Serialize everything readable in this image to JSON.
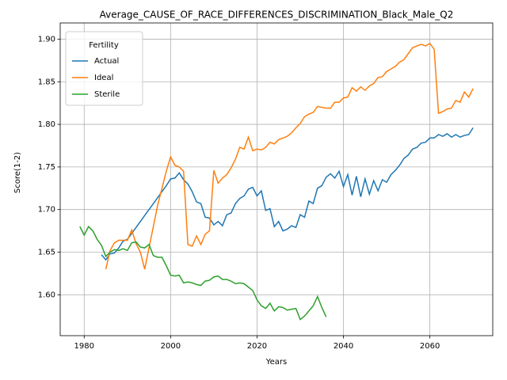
{
  "chart_data": {
    "type": "line",
    "title": "Average_CAUSE_OF_RACE_DIFFERENCES_DISCRIMINATION_Black_Male_Q2",
    "xlabel": "Years",
    "ylabel": "Score(1-2)",
    "legend_title": "Fertility",
    "legend_loc": "upper left",
    "grid": true,
    "xlim": [
      1974.45,
      2074.55
    ],
    "ylim": [
      1.552,
      1.919
    ],
    "xticks": [
      1980,
      2000,
      2020,
      2040,
      2060
    ],
    "yticks": [
      {
        "value": 1.6,
        "label": "1.60"
      },
      1.65,
      {
        "value": 1.7,
        "label": "1.70"
      },
      1.75,
      {
        "value": 1.8,
        "label": "1.80"
      },
      1.85,
      {
        "value": 1.9,
        "label": "1.90"
      }
    ],
    "x": [
      1979,
      1980,
      1981,
      1982,
      1983,
      1984,
      1985,
      1986,
      1987,
      1988,
      1989,
      1990,
      1991,
      1992,
      1993,
      1994,
      1995,
      1996,
      1997,
      1998,
      1999,
      2000,
      2001,
      2002,
      2003,
      2004,
      2005,
      2006,
      2007,
      2008,
      2009,
      2010,
      2011,
      2012,
      2013,
      2014,
      2015,
      2016,
      2017,
      2018,
      2019,
      2020,
      2021,
      2022,
      2023,
      2024,
      2025,
      2026,
      2027,
      2028,
      2029,
      2030,
      2031,
      2032,
      2033,
      2034,
      2035,
      2036,
      2037,
      2038,
      2039,
      2040,
      2041,
      2042,
      2043,
      2044,
      2045,
      2046,
      2047,
      2048,
      2049,
      2050,
      2051,
      2052,
      2053,
      2054,
      2055,
      2056,
      2057,
      2058,
      2059,
      2060,
      2061,
      2062,
      2063,
      2064,
      2065,
      2066,
      2067,
      2068,
      2069,
      2070
    ],
    "series": [
      {
        "name": "Actual",
        "color": "#1f77b4",
        "values": [
          null,
          null,
          null,
          null,
          null,
          1.647,
          1.641,
          1.648,
          1.649,
          1.655,
          1.663,
          1.665,
          1.672,
          1.679,
          1.686,
          1.693,
          1.7,
          1.707,
          1.714,
          1.721,
          1.728,
          1.736,
          1.737,
          1.743,
          1.735,
          1.73,
          1.721,
          1.709,
          1.707,
          1.691,
          1.69,
          1.682,
          1.686,
          1.681,
          1.694,
          1.696,
          1.707,
          1.713,
          1.716,
          1.724,
          1.726,
          1.716,
          1.722,
          1.699,
          1.701,
          1.68,
          1.686,
          1.675,
          1.677,
          1.681,
          1.679,
          1.694,
          1.691,
          1.71,
          1.707,
          1.725,
          1.728,
          1.738,
          1.742,
          1.737,
          1.745,
          1.727,
          1.741,
          1.717,
          1.739,
          1.715,
          1.736,
          1.718,
          1.734,
          1.722,
          1.735,
          1.732,
          1.741,
          1.746,
          1.752,
          1.76,
          1.764,
          1.771,
          1.773,
          1.778,
          1.779,
          1.784,
          1.784,
          1.788,
          1.786,
          1.789,
          1.785,
          1.788,
          1.785,
          1.787,
          1.788,
          1.796
        ]
      },
      {
        "name": "Ideal",
        "color": "#ff7f0e",
        "values": [
          null,
          null,
          null,
          null,
          null,
          null,
          1.63,
          1.652,
          1.661,
          1.664,
          1.664,
          1.664,
          1.676,
          1.66,
          1.65,
          1.63,
          1.655,
          1.68,
          1.705,
          1.725,
          1.745,
          1.762,
          1.752,
          1.75,
          1.745,
          1.659,
          1.657,
          1.669,
          1.659,
          1.671,
          1.675,
          1.746,
          1.731,
          1.737,
          1.741,
          1.749,
          1.759,
          1.773,
          1.771,
          1.785,
          1.769,
          1.771,
          1.77,
          1.773,
          1.779,
          1.777,
          1.782,
          1.784,
          1.786,
          1.79,
          1.796,
          1.801,
          1.809,
          1.812,
          1.814,
          1.821,
          1.82,
          1.819,
          1.819,
          1.826,
          1.826,
          1.831,
          1.832,
          1.843,
          1.839,
          1.844,
          1.84,
          1.845,
          1.848,
          1.855,
          1.856,
          1.862,
          1.865,
          1.868,
          1.873,
          1.876,
          1.883,
          1.89,
          1.892,
          1.894,
          1.892,
          1.895,
          1.888,
          1.813,
          1.815,
          1.818,
          1.819,
          1.828,
          1.826,
          1.838,
          1.832,
          1.842
        ]
      },
      {
        "name": "Sterile",
        "color": "#2ca02c",
        "values": [
          1.68,
          1.67,
          1.68,
          1.675,
          1.665,
          1.658,
          1.645,
          1.65,
          1.653,
          1.652,
          1.654,
          1.652,
          1.661,
          1.662,
          1.656,
          1.655,
          1.659,
          1.646,
          1.644,
          1.644,
          1.634,
          1.623,
          1.622,
          1.623,
          1.614,
          1.615,
          1.614,
          1.612,
          1.611,
          1.616,
          1.617,
          1.621,
          1.622,
          1.618,
          1.618,
          1.616,
          1.613,
          1.614,
          1.613,
          1.609,
          1.605,
          1.594,
          1.587,
          1.584,
          1.59,
          1.581,
          1.586,
          1.585,
          1.582,
          1.583,
          1.584,
          1.571,
          1.575,
          1.581,
          1.587,
          1.598,
          1.585,
          1.574,
          null,
          null,
          null,
          null,
          null,
          null,
          null,
          null,
          null,
          null,
          null,
          null,
          null,
          null,
          null,
          null,
          null,
          null,
          null,
          null,
          null,
          null,
          null,
          null,
          null,
          null,
          null,
          null,
          null,
          null,
          null,
          null,
          null,
          null
        ]
      }
    ]
  }
}
